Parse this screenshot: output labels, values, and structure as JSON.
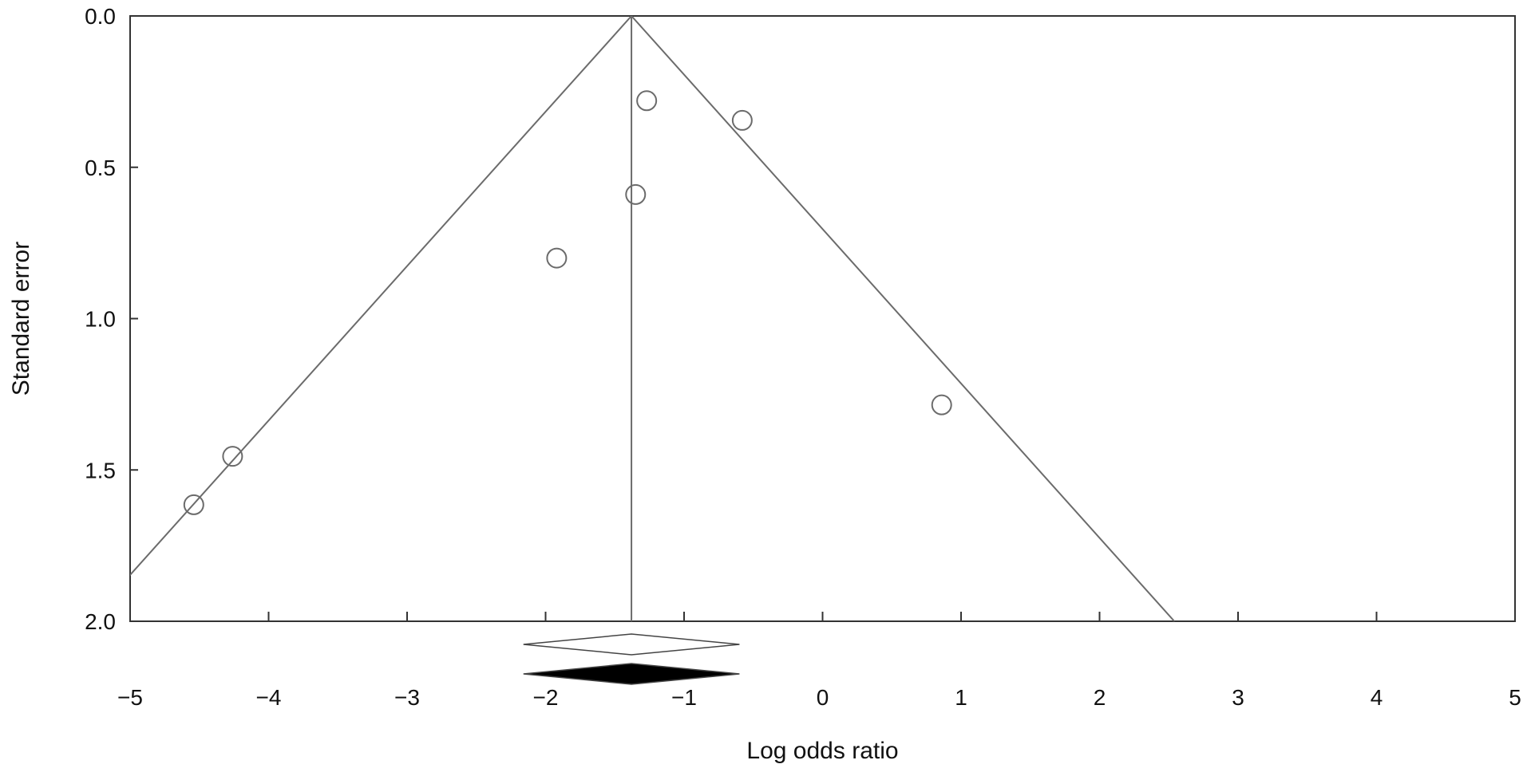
{
  "chart_data": {
    "type": "scatter",
    "title": "",
    "xlabel": "Log odds ratio",
    "ylabel": "Standard error",
    "xlim": [
      -5,
      5
    ],
    "ylim": [
      0,
      2
    ],
    "y_inverted": true,
    "x_ticks": [
      -5,
      -4,
      -3,
      -2,
      -1,
      0,
      1,
      2,
      3,
      4,
      5
    ],
    "x_tick_labels": [
      "−5",
      "−4",
      "−3",
      "−2",
      "−1",
      "0",
      "1",
      "2",
      "3",
      "4",
      "5"
    ],
    "y_ticks": [
      0,
      0.5,
      1,
      1.5,
      2
    ],
    "y_tick_labels": [
      "0.0",
      "0.5",
      "1.0",
      "1.5",
      "2.0"
    ],
    "grid": false,
    "pooled_effect": -1.38,
    "funnel_z": 1.96,
    "points": [
      {
        "x": -1.27,
        "y": 0.28
      },
      {
        "x": -0.58,
        "y": 0.345
      },
      {
        "x": -1.35,
        "y": 0.59
      },
      {
        "x": -1.92,
        "y": 0.8
      },
      {
        "x": 0.86,
        "y": 1.285
      },
      {
        "x": -4.26,
        "y": 1.455
      },
      {
        "x": -4.54,
        "y": 1.615
      }
    ],
    "summary_diamonds": [
      {
        "estimate": -1.38,
        "lower": -2.16,
        "upper": -0.6,
        "fill": "#ffffff"
      },
      {
        "estimate": -1.38,
        "lower": -2.16,
        "upper": -0.6,
        "fill": "#000000"
      }
    ],
    "colors": {
      "axis": "#333333",
      "funnel": "#6b6b6b",
      "marker": "#6b6b6b"
    }
  }
}
